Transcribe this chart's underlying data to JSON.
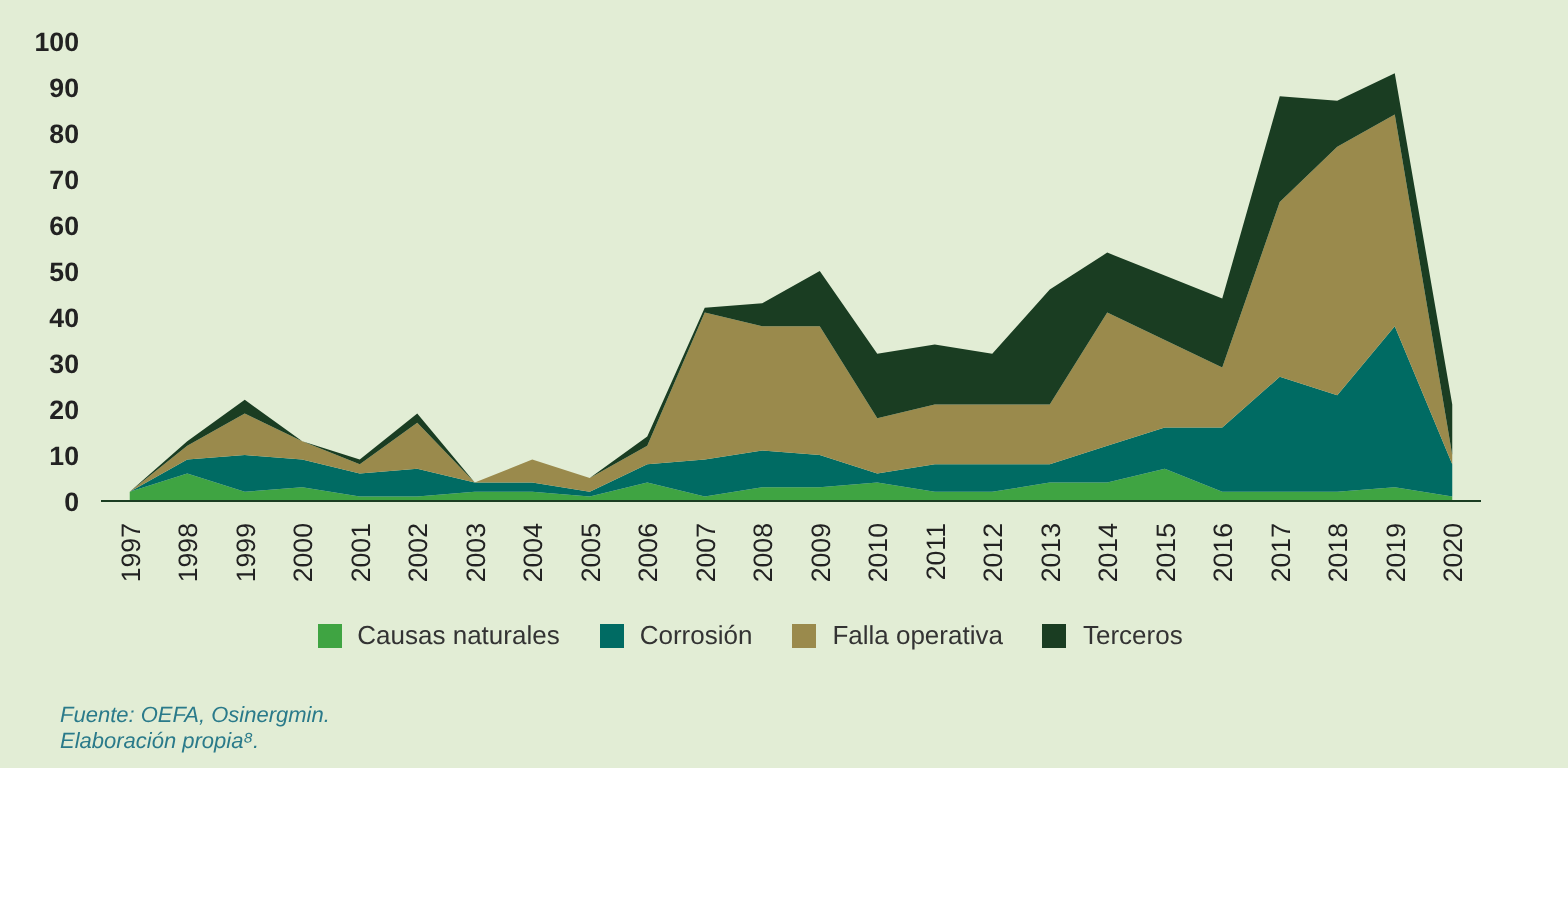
{
  "chart_data": {
    "type": "area",
    "stacked": true,
    "categories": [
      "1997",
      "1998",
      "1999",
      "2000",
      "2001",
      "2002",
      "2003",
      "2004",
      "2005",
      "2006",
      "2007",
      "2008",
      "2009",
      "2010",
      "2011",
      "2012",
      "2013",
      "2014",
      "2015",
      "2016",
      "2017",
      "2018",
      "2019",
      "2020"
    ],
    "series": [
      {
        "name": "Causas naturales",
        "color": "#3fa442",
        "values": [
          2,
          6,
          2,
          3,
          1,
          1,
          2,
          2,
          1,
          4,
          1,
          3,
          3,
          4,
          2,
          2,
          4,
          4,
          7,
          2,
          2,
          2,
          3,
          1
        ]
      },
      {
        "name": "Corrosión",
        "color": "#006b63",
        "values": [
          0,
          3,
          8,
          6,
          5,
          6,
          2,
          2,
          1,
          4,
          8,
          8,
          7,
          2,
          6,
          6,
          4,
          8,
          9,
          14,
          25,
          21,
          35,
          7
        ]
      },
      {
        "name": "Falla operativa",
        "color": "#9a8a4c",
        "values": [
          0,
          3,
          9,
          4,
          2,
          10,
          0,
          5,
          3,
          4,
          32,
          27,
          28,
          12,
          13,
          13,
          13,
          29,
          19,
          13,
          38,
          54,
          46,
          2
        ]
      },
      {
        "name": "Terceros",
        "color": "#1a3d22",
        "values": [
          0,
          1,
          3,
          0,
          1,
          2,
          0,
          0,
          0,
          2,
          1,
          5,
          12,
          14,
          13,
          11,
          25,
          13,
          14,
          15,
          23,
          10,
          9,
          11
        ]
      }
    ],
    "ylim": [
      0,
      100
    ],
    "yticks": [
      0,
      10,
      20,
      30,
      40,
      50,
      60,
      70,
      80,
      90,
      100
    ],
    "grid": false,
    "legend": "bottom",
    "annotations": [
      "Fuente: OEFA, Osinergmin.",
      "Elaboración propia⁸."
    ]
  }
}
